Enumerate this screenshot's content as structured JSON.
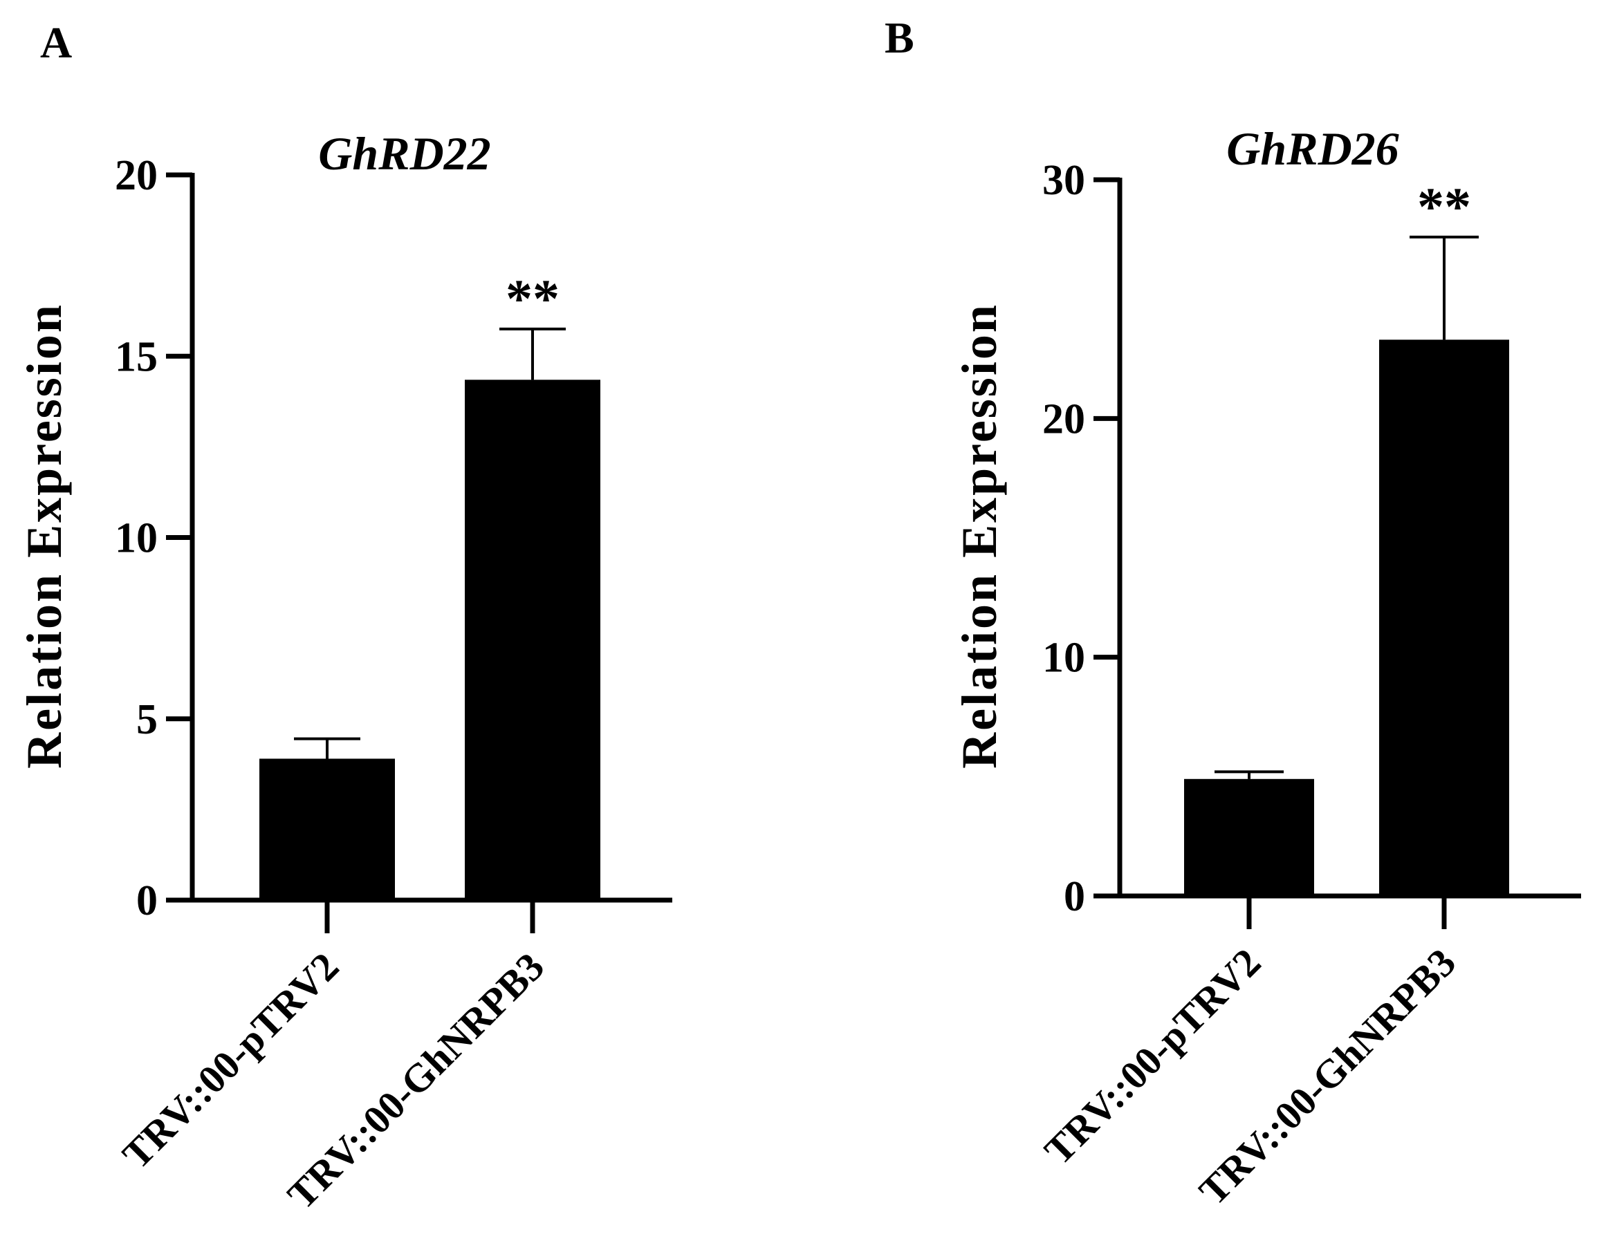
{
  "panels": [
    {
      "label": "A"
    },
    {
      "label": "B"
    }
  ],
  "colors": {
    "bar": "#000000",
    "axis": "#000000",
    "background": "#ffffff"
  },
  "chart_data": [
    {
      "type": "bar",
      "title": "GhRD22",
      "xlabel": "",
      "ylabel": "Relation Expression",
      "ylim": [
        0,
        20
      ],
      "yticks": [
        "0",
        "5",
        "10",
        "15",
        "20"
      ],
      "categories": [
        "TRV::00-pTRV2",
        "TRV::00-GhNRPB3"
      ],
      "values": [
        3.9,
        14.35
      ],
      "errors": [
        0.55,
        1.4
      ],
      "annotations": [
        "",
        "**"
      ],
      "grid": false
    },
    {
      "type": "bar",
      "title": "GhRD26",
      "xlabel": "",
      "ylabel": "Relation Expression",
      "ylim": [
        0,
        30
      ],
      "yticks": [
        "0",
        "10",
        "20",
        "30"
      ],
      "categories": [
        "TRV::00-pTRV2",
        "TRV::00-GhNRPB3"
      ],
      "values": [
        4.9,
        23.3
      ],
      "errors": [
        0.3,
        4.3
      ],
      "annotations": [
        "",
        "**"
      ],
      "grid": false
    }
  ]
}
